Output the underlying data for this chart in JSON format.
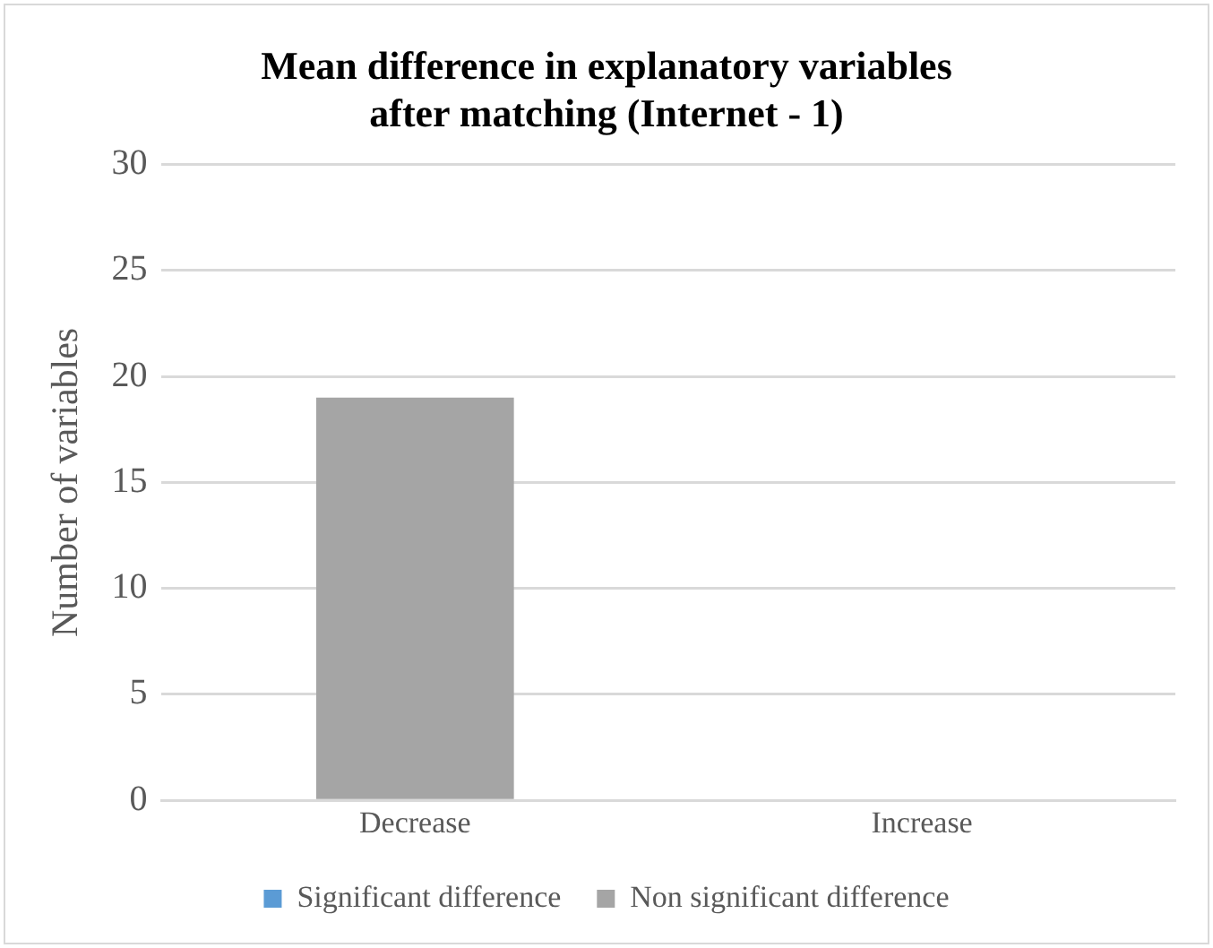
{
  "chart_data": {
    "type": "bar",
    "title": "Mean difference in explanatory variables after matching (Internet - 1)",
    "ylabel": "Number of variables",
    "categories": [
      "Decrease",
      "Increase"
    ],
    "stacked": true,
    "series": [
      {
        "name": "Significant difference",
        "color": "#5b9bd5",
        "values": [
          0,
          0
        ]
      },
      {
        "name": "Non significant difference",
        "color": "#a5a5a5",
        "values": [
          19,
          0
        ]
      }
    ],
    "ylim": [
      0,
      30
    ],
    "yticks": [
      0,
      5,
      10,
      15,
      20,
      25,
      30
    ],
    "grid": "y",
    "legend": "bottom"
  }
}
